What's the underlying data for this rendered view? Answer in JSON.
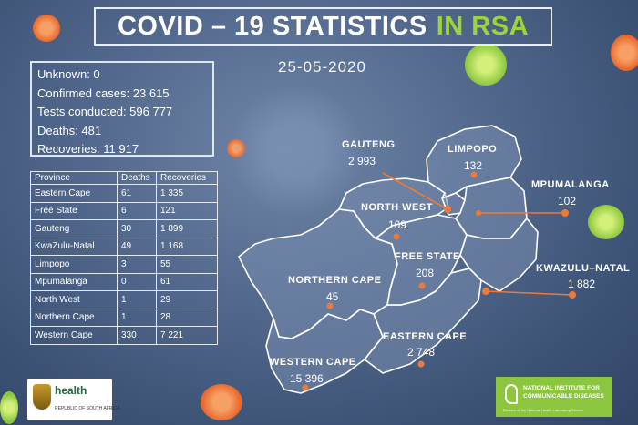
{
  "title": {
    "main": "COVID – 19 STATISTICS",
    "highlight": "IN RSA"
  },
  "date": "25-05-2020",
  "stats": [
    "Unknown: 0",
    "Confirmed cases: 23 615",
    "Tests conducted: 596 777",
    "Deaths: 481",
    "Recoveries:  11 917"
  ],
  "table": {
    "headers": [
      "Province",
      "Deaths",
      "Recoveries"
    ],
    "rows": [
      [
        "Eastern Cape",
        "61",
        "1 335"
      ],
      [
        "Free State",
        "6",
        "121"
      ],
      [
        "Gauteng",
        "30",
        "1 899"
      ],
      [
        "KwaZulu-Natal",
        "49",
        "1 168"
      ],
      [
        "Limpopo",
        "3",
        "55"
      ],
      [
        "Mpumalanga",
        "0",
        "61"
      ],
      [
        "North West",
        "1",
        "29"
      ],
      [
        "Northern Cape",
        "1",
        "28"
      ],
      [
        "Western Cape",
        "330",
        "7 221"
      ]
    ]
  },
  "map": {
    "gauteng": {
      "name": "GAUTENG",
      "value": "2 993"
    },
    "limpopo": {
      "name": "LIMPOPO",
      "value": "132"
    },
    "mpumalanga": {
      "name": "MPUMALANGA",
      "value": "102"
    },
    "north_west": {
      "name": "NORTH WEST",
      "value": "109"
    },
    "free_state": {
      "name": "FREE STATE",
      "value": "208"
    },
    "kwazulu_natal": {
      "name": "KWAZULU–NATAL",
      "value": "1 882"
    },
    "northern_cape": {
      "name": "NORTHERN CAPE",
      "value": "45"
    },
    "eastern_cape": {
      "name": "EASTERN CAPE",
      "value": "2 748"
    },
    "western_cape": {
      "name": "WESTERN CAPE",
      "value": "15 396"
    }
  },
  "logos": {
    "health": "health",
    "health_sub": "REPUBLIC OF SOUTH AFRICA",
    "nicd_1": "NATIONAL INSTITUTE FOR",
    "nicd_2": "COMMUNICABLE DISEASES",
    "nicd_3": "Division of the National Health Laboratory Service"
  },
  "colors": {
    "accent_green": "#9ed33a",
    "marker_orange": "#ee7a3a",
    "nicd_green": "#8cc63f"
  }
}
